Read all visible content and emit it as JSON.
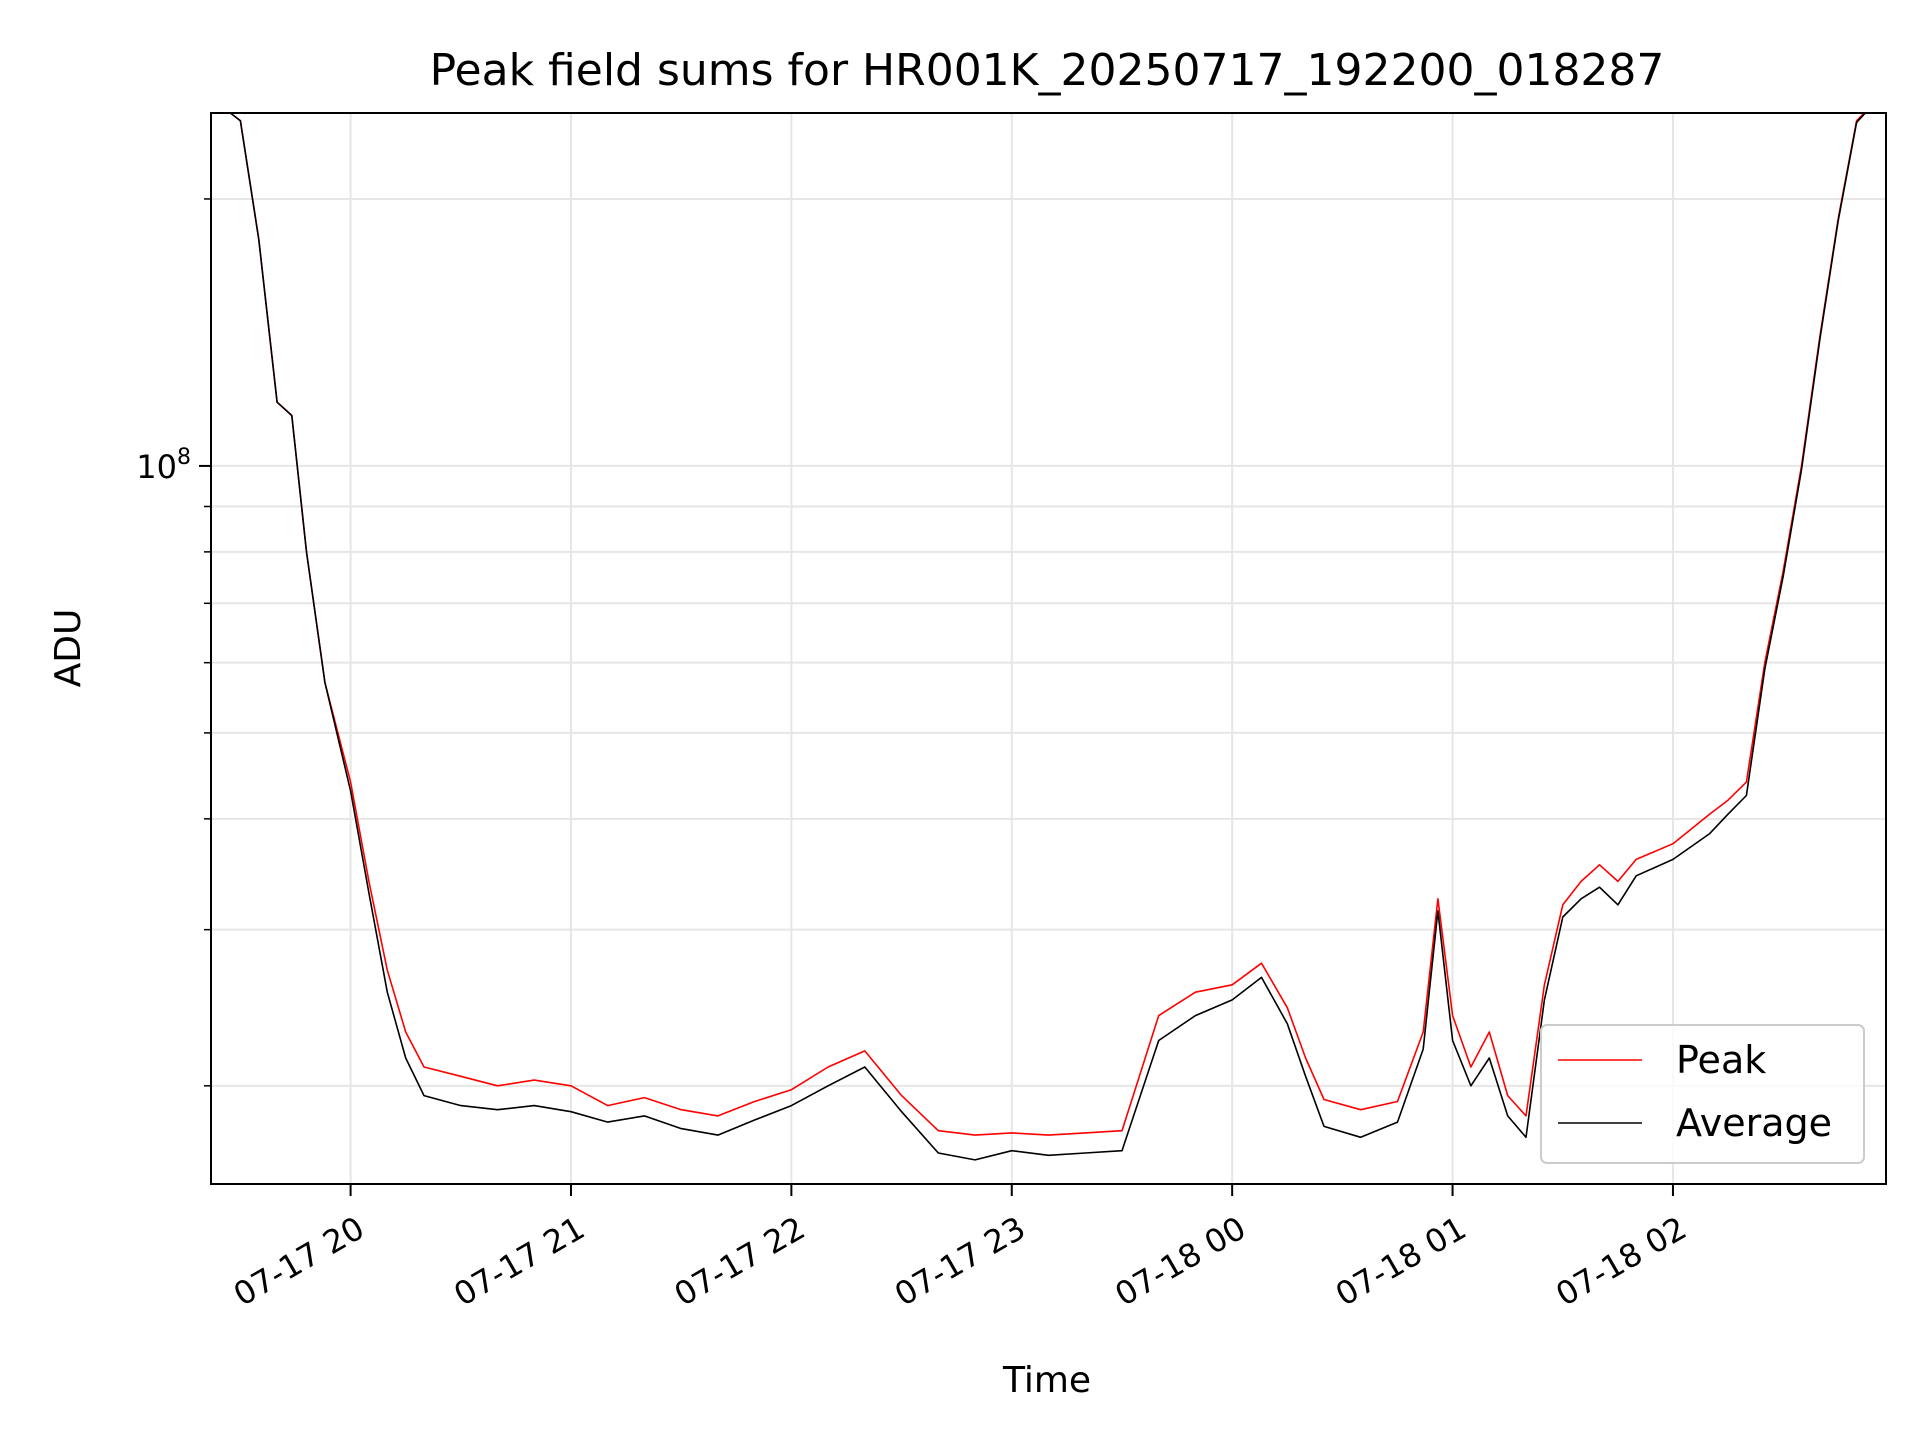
{
  "chart_data": {
    "type": "line",
    "title": "Peak field sums for HR001K_20250717_192200_018287",
    "xlabel": "Time",
    "ylabel": "ADU",
    "yscale": "log",
    "grid": true,
    "legend_position": "lower-right",
    "x_ticks": [
      "07-17 20",
      "07-17 21",
      "07-17 22",
      "07-17 23",
      "07-18 00",
      "07-18 01",
      "07-18 02"
    ],
    "y_tick_labels": [
      {
        "value": 100000000,
        "mantissa": "10",
        "exponent": "8"
      }
    ],
    "xlim": [
      "2025-07-17 19:22",
      "2025-07-18 02:58"
    ],
    "ylim": [
      15500000,
      250000000
    ],
    "series": [
      {
        "name": "Peak",
        "color": "#ff0000",
        "points": [
          [
            "2025-07-17 19:22",
            260000000
          ],
          [
            "2025-07-17 19:30",
            245000000
          ],
          [
            "2025-07-17 19:35",
            180000000
          ],
          [
            "2025-07-17 19:40",
            118000000
          ],
          [
            "2025-07-17 19:44",
            114000000
          ],
          [
            "2025-07-17 19:48",
            80000000
          ],
          [
            "2025-07-17 19:53",
            57000000
          ],
          [
            "2025-07-17 20:00",
            44000000
          ],
          [
            "2025-07-17 20:05",
            34000000
          ],
          [
            "2025-07-17 20:10",
            27000000
          ],
          [
            "2025-07-17 20:15",
            23000000
          ],
          [
            "2025-07-17 20:20",
            21000000
          ],
          [
            "2025-07-17 20:30",
            20500000
          ],
          [
            "2025-07-17 20:40",
            20000000
          ],
          [
            "2025-07-17 20:50",
            20300000
          ],
          [
            "2025-07-17 21:00",
            20000000
          ],
          [
            "2025-07-17 21:10",
            19000000
          ],
          [
            "2025-07-17 21:20",
            19400000
          ],
          [
            "2025-07-17 21:30",
            18800000
          ],
          [
            "2025-07-17 21:40",
            18500000
          ],
          [
            "2025-07-17 21:50",
            19200000
          ],
          [
            "2025-07-17 22:00",
            19800000
          ],
          [
            "2025-07-17 22:10",
            21000000
          ],
          [
            "2025-07-17 22:20",
            21900000
          ],
          [
            "2025-07-17 22:30",
            19500000
          ],
          [
            "2025-07-17 22:40",
            17800000
          ],
          [
            "2025-07-17 22:50",
            17600000
          ],
          [
            "2025-07-17 23:00",
            17700000
          ],
          [
            "2025-07-17 23:10",
            17600000
          ],
          [
            "2025-07-17 23:20",
            17700000
          ],
          [
            "2025-07-17 23:30",
            17800000
          ],
          [
            "2025-07-17 23:40",
            24000000
          ],
          [
            "2025-07-17 23:50",
            25500000
          ],
          [
            "2025-07-18 00:00",
            26000000
          ],
          [
            "2025-07-18 00:08",
            27500000
          ],
          [
            "2025-07-18 00:15",
            24500000
          ],
          [
            "2025-07-18 00:20",
            21500000
          ],
          [
            "2025-07-18 00:25",
            19300000
          ],
          [
            "2025-07-18 00:35",
            18800000
          ],
          [
            "2025-07-18 00:45",
            19200000
          ],
          [
            "2025-07-18 00:52",
            23000000
          ],
          [
            "2025-07-18 00:56",
            32500000
          ],
          [
            "2025-07-18 01:00",
            24000000
          ],
          [
            "2025-07-18 01:05",
            21000000
          ],
          [
            "2025-07-18 01:10",
            23000000
          ],
          [
            "2025-07-18 01:15",
            19500000
          ],
          [
            "2025-07-18 01:20",
            18500000
          ],
          [
            "2025-07-18 01:25",
            26000000
          ],
          [
            "2025-07-18 01:30",
            32000000
          ],
          [
            "2025-07-18 01:35",
            34000000
          ],
          [
            "2025-07-18 01:40",
            35500000
          ],
          [
            "2025-07-18 01:45",
            34000000
          ],
          [
            "2025-07-18 01:50",
            36000000
          ],
          [
            "2025-07-18 02:00",
            37500000
          ],
          [
            "2025-07-18 02:10",
            40500000
          ],
          [
            "2025-07-18 02:15",
            42000000
          ],
          [
            "2025-07-18 02:20",
            44000000
          ],
          [
            "2025-07-18 02:25",
            60000000
          ],
          [
            "2025-07-18 02:30",
            76000000
          ],
          [
            "2025-07-18 02:35",
            100000000
          ],
          [
            "2025-07-18 02:40",
            140000000
          ],
          [
            "2025-07-18 02:45",
            190000000
          ],
          [
            "2025-07-18 02:50",
            245000000
          ],
          [
            "2025-07-18 02:58",
            265000000
          ]
        ]
      },
      {
        "name": "Average",
        "color": "#000000",
        "points": [
          [
            "2025-07-17 19:22",
            260000000
          ],
          [
            "2025-07-17 19:30",
            245000000
          ],
          [
            "2025-07-17 19:35",
            180000000
          ],
          [
            "2025-07-17 19:40",
            118000000
          ],
          [
            "2025-07-17 19:44",
            114000000
          ],
          [
            "2025-07-17 19:48",
            80000000
          ],
          [
            "2025-07-17 19:53",
            57000000
          ],
          [
            "2025-07-17 20:00",
            43000000
          ],
          [
            "2025-07-17 20:05",
            33000000
          ],
          [
            "2025-07-17 20:10",
            25500000
          ],
          [
            "2025-07-17 20:15",
            21500000
          ],
          [
            "2025-07-17 20:20",
            19500000
          ],
          [
            "2025-07-17 20:30",
            19000000
          ],
          [
            "2025-07-17 20:40",
            18800000
          ],
          [
            "2025-07-17 20:50",
            19000000
          ],
          [
            "2025-07-17 21:00",
            18700000
          ],
          [
            "2025-07-17 21:10",
            18200000
          ],
          [
            "2025-07-17 21:20",
            18500000
          ],
          [
            "2025-07-17 21:30",
            17900000
          ],
          [
            "2025-07-17 21:40",
            17600000
          ],
          [
            "2025-07-17 21:50",
            18300000
          ],
          [
            "2025-07-17 22:00",
            19000000
          ],
          [
            "2025-07-17 22:10",
            20000000
          ],
          [
            "2025-07-17 22:20",
            21000000
          ],
          [
            "2025-07-17 22:30",
            18700000
          ],
          [
            "2025-07-17 22:40",
            16800000
          ],
          [
            "2025-07-17 22:50",
            16500000
          ],
          [
            "2025-07-17 23:00",
            16900000
          ],
          [
            "2025-07-17 23:10",
            16700000
          ],
          [
            "2025-07-17 23:20",
            16800000
          ],
          [
            "2025-07-17 23:30",
            16900000
          ],
          [
            "2025-07-17 23:40",
            22500000
          ],
          [
            "2025-07-17 23:50",
            24000000
          ],
          [
            "2025-07-18 00:00",
            25000000
          ],
          [
            "2025-07-18 00:08",
            26500000
          ],
          [
            "2025-07-18 00:15",
            23500000
          ],
          [
            "2025-07-18 00:20",
            20500000
          ],
          [
            "2025-07-18 00:25",
            18000000
          ],
          [
            "2025-07-18 00:35",
            17500000
          ],
          [
            "2025-07-18 00:45",
            18200000
          ],
          [
            "2025-07-18 00:52",
            22000000
          ],
          [
            "2025-07-18 00:56",
            31500000
          ],
          [
            "2025-07-18 01:00",
            22500000
          ],
          [
            "2025-07-18 01:05",
            20000000
          ],
          [
            "2025-07-18 01:10",
            21500000
          ],
          [
            "2025-07-18 01:15",
            18500000
          ],
          [
            "2025-07-18 01:20",
            17500000
          ],
          [
            "2025-07-18 01:25",
            25000000
          ],
          [
            "2025-07-18 01:30",
            31000000
          ],
          [
            "2025-07-18 01:35",
            32500000
          ],
          [
            "2025-07-18 01:40",
            33500000
          ],
          [
            "2025-07-18 01:45",
            32000000
          ],
          [
            "2025-07-18 01:50",
            34500000
          ],
          [
            "2025-07-18 02:00",
            36000000
          ],
          [
            "2025-07-18 02:10",
            38500000
          ],
          [
            "2025-07-18 02:15",
            40500000
          ],
          [
            "2025-07-18 02:20",
            42500000
          ],
          [
            "2025-07-18 02:25",
            59000000
          ],
          [
            "2025-07-18 02:30",
            75000000
          ],
          [
            "2025-07-18 02:35",
            99000000
          ],
          [
            "2025-07-18 02:40",
            139000000
          ],
          [
            "2025-07-18 02:45",
            189000000
          ],
          [
            "2025-07-18 02:50",
            244000000
          ],
          [
            "2025-07-18 02:58",
            265000000
          ]
        ]
      }
    ]
  }
}
